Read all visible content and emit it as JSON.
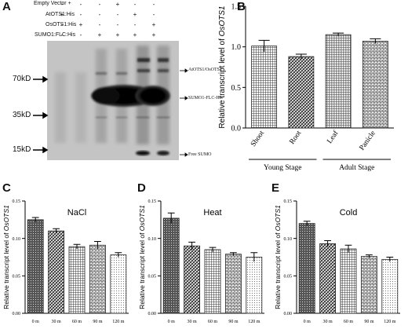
{
  "panels": {
    "A": {
      "letter": "A",
      "rows": [
        {
          "label": "Empty Vector +",
          "signs": [
            "-",
            "-",
            "-",
            "+",
            "-",
            "-"
          ]
        },
        {
          "label": "AtOTS1:His",
          "signs": [
            "+",
            "-",
            "-",
            "-",
            "+",
            "-"
          ]
        },
        {
          "label": "OsOTS1:His",
          "signs": [
            "-",
            "+",
            "-",
            "-",
            "-",
            "+"
          ]
        },
        {
          "label": "SUMO1:FLC:His",
          "signs": [
            "-",
            "-",
            "+",
            "+",
            "+",
            "+"
          ]
        }
      ],
      "markers": [
        "70kD",
        "35kD",
        "15kD"
      ],
      "band_labels": [
        "AtOTS1/OsOTS1",
        "SUMO1-FLC-His",
        "Free SUMO"
      ]
    },
    "B": {
      "letter": "B"
    },
    "C": {
      "letter": "C"
    },
    "D": {
      "letter": "D"
    },
    "E": {
      "letter": "E"
    }
  },
  "chart_data": [
    {
      "panel": "B",
      "type": "bar",
      "title": "",
      "categories": [
        "Shoot",
        "Root",
        "Leaf",
        "Panicle"
      ],
      "values": [
        1.01,
        0.88,
        1.15,
        1.07
      ],
      "errors": [
        0.07,
        0.03,
        0.02,
        0.03
      ],
      "patterns": [
        "grid",
        "diagonal",
        "vertical",
        "brick"
      ],
      "ylabel_plain": "Relative transcript level of ",
      "ylabel_italic": "OsOTS1",
      "ylim": [
        0,
        1.5
      ],
      "yticks": [
        "0.0",
        "0.5",
        "1.0",
        "1.5"
      ],
      "groups": [
        {
          "label": "Young Stage",
          "categories": [
            "Shoot",
            "Root"
          ]
        },
        {
          "label": "Adult Stage",
          "categories": [
            "Leaf",
            "Panicle"
          ]
        }
      ]
    },
    {
      "panel": "C",
      "type": "bar",
      "title": "NaCl",
      "categories": [
        "0 m",
        "30 m",
        "60 m",
        "90 m",
        "120 m"
      ],
      "values": [
        0.125,
        0.11,
        0.089,
        0.091,
        0.078
      ],
      "errors": [
        0.003,
        0.003,
        0.003,
        0.005,
        0.003
      ],
      "patterns": [
        "dense",
        "diagonal",
        "grid",
        "brick",
        "light"
      ],
      "ylabel_plain": "Relative transcript level of ",
      "ylabel_italic": "OsOTS1",
      "ylim": [
        0,
        0.15
      ],
      "yticks": [
        "0.00",
        "0.05",
        "0.10",
        "0.15"
      ]
    },
    {
      "panel": "D",
      "type": "bar",
      "title": "Heat",
      "categories": [
        "0 m",
        "30 m",
        "60 m",
        "90 m",
        "120 m"
      ],
      "values": [
        0.127,
        0.09,
        0.085,
        0.079,
        0.075
      ],
      "errors": [
        0.007,
        0.005,
        0.003,
        0.002,
        0.006
      ],
      "patterns": [
        "dense",
        "diagonal",
        "grid",
        "brick",
        "light"
      ],
      "ylabel_plain": "Relative transcript level of ",
      "ylabel_italic": "OsOTS1",
      "ylim": [
        0,
        0.15
      ],
      "yticks": [
        "0.00",
        "0.05",
        "0.10",
        "0.15"
      ]
    },
    {
      "panel": "E",
      "type": "bar",
      "title": "Cold",
      "categories": [
        "0 m",
        "30 m",
        "60 m",
        "90 m",
        "120 m"
      ],
      "values": [
        0.12,
        0.093,
        0.086,
        0.076,
        0.072
      ],
      "errors": [
        0.003,
        0.004,
        0.005,
        0.002,
        0.003
      ],
      "patterns": [
        "dense",
        "diagonal",
        "grid",
        "brick",
        "light"
      ],
      "ylabel_plain": "Relative transcript level of ",
      "ylabel_italic": "OsOTS1",
      "ylim": [
        0,
        0.15
      ],
      "yticks": [
        "0.00",
        "0.05",
        "0.10",
        "0.15"
      ]
    }
  ]
}
